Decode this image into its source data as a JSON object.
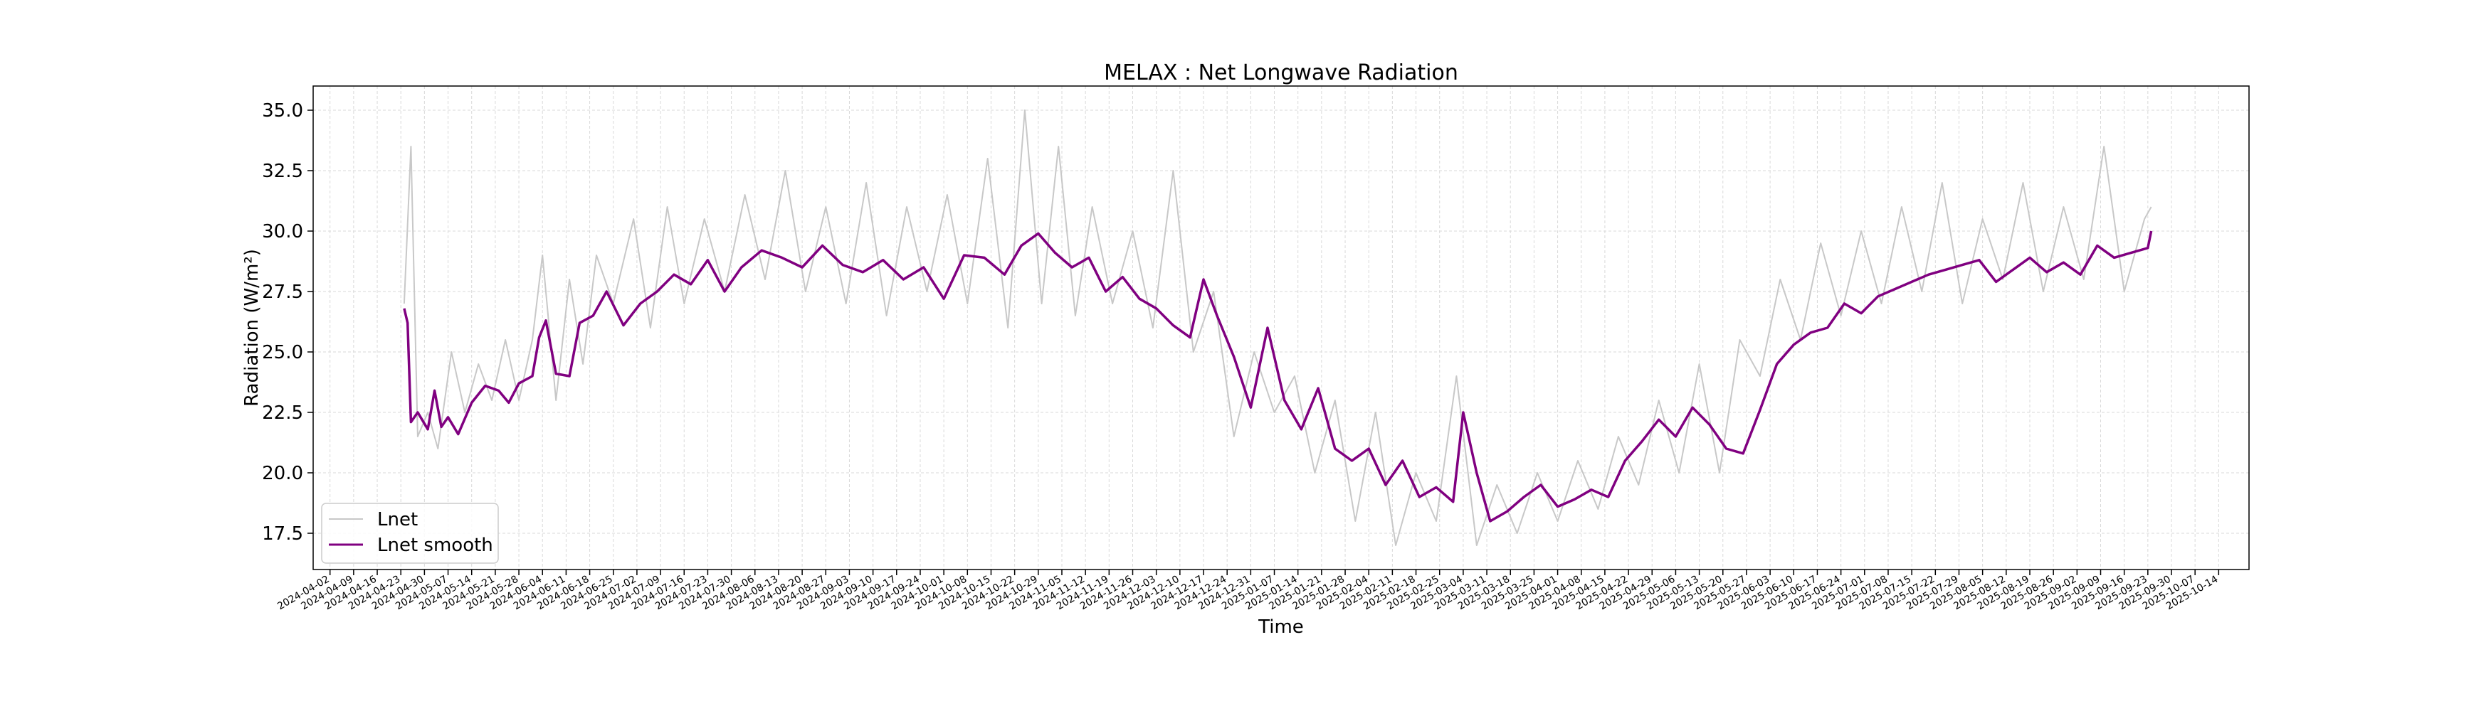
{
  "chart_data": {
    "type": "line",
    "title": "MELAX : Net Longwave Radiation",
    "xlabel": "Time",
    "ylabel": "Radiation (W/m²)",
    "ylim": [
      16.0,
      36.0
    ],
    "yticks": [
      17.5,
      20.0,
      22.5,
      25.0,
      27.5,
      30.0,
      32.5,
      35.0
    ],
    "ytick_labels": [
      "17.5",
      "20.0",
      "22.5",
      "25.0",
      "27.5",
      "30.0",
      "32.5",
      "35.0"
    ],
    "xlim_dates": [
      "2024-03-28",
      "2025-10-23"
    ],
    "xtick_labels": [
      "2024-04-02",
      "2024-04-09",
      "2024-04-16",
      "2024-04-23",
      "2024-04-30",
      "2024-05-07",
      "2024-05-14",
      "2024-05-21",
      "2024-05-28",
      "2024-06-04",
      "2024-06-11",
      "2024-06-18",
      "2024-06-25",
      "2024-07-02",
      "2024-07-09",
      "2024-07-16",
      "2024-07-23",
      "2024-07-30",
      "2024-08-06",
      "2024-08-13",
      "2024-08-20",
      "2024-08-27",
      "2024-09-03",
      "2024-09-10",
      "2024-09-17",
      "2024-09-24",
      "2024-10-01",
      "2024-10-08",
      "2024-10-15",
      "2024-10-22",
      "2024-10-29",
      "2024-11-05",
      "2024-11-12",
      "2024-11-19",
      "2024-11-26",
      "2024-12-03",
      "2024-12-10",
      "2024-12-17",
      "2024-12-24",
      "2024-12-31",
      "2025-01-07",
      "2025-01-14",
      "2025-01-21",
      "2025-01-28",
      "2025-02-04",
      "2025-02-11",
      "2025-02-18",
      "2025-02-25",
      "2025-03-04",
      "2025-03-11",
      "2025-03-18",
      "2025-03-25",
      "2025-04-01",
      "2025-04-08",
      "2025-04-15",
      "2025-04-22",
      "2025-04-29",
      "2025-05-06",
      "2025-05-13",
      "2025-05-20",
      "2025-05-27",
      "2025-06-03",
      "2025-06-10",
      "2025-06-17",
      "2025-06-24",
      "2025-07-01",
      "2025-07-08",
      "2025-07-15",
      "2025-07-22",
      "2025-07-29",
      "2025-08-05",
      "2025-08-12",
      "2025-08-19",
      "2025-08-26",
      "2025-09-02",
      "2025-09-09",
      "2025-09-16",
      "2025-09-23",
      "2025-09-30",
      "2025-10-07",
      "2025-10-14"
    ],
    "grid": true,
    "legend_position": "lower-left",
    "series": [
      {
        "name": "Lnet",
        "color": "#c8c8c8",
        "x": [
          "2024-04-24",
          "2024-04-26",
          "2024-04-28",
          "2024-05-01",
          "2024-05-04",
          "2024-05-08",
          "2024-05-12",
          "2024-05-16",
          "2024-05-20",
          "2024-05-24",
          "2024-05-28",
          "2024-06-01",
          "2024-06-04",
          "2024-06-08",
          "2024-06-12",
          "2024-06-16",
          "2024-06-20",
          "2024-06-25",
          "2024-07-01",
          "2024-07-06",
          "2024-07-11",
          "2024-07-16",
          "2024-07-22",
          "2024-07-28",
          "2024-08-03",
          "2024-08-09",
          "2024-08-15",
          "2024-08-21",
          "2024-08-27",
          "2024-09-02",
          "2024-09-08",
          "2024-09-14",
          "2024-09-20",
          "2024-09-26",
          "2024-10-02",
          "2024-10-08",
          "2024-10-14",
          "2024-10-20",
          "2024-10-25",
          "2024-10-30",
          "2024-11-04",
          "2024-11-09",
          "2024-11-14",
          "2024-11-20",
          "2024-11-26",
          "2024-12-02",
          "2024-12-08",
          "2024-12-14",
          "2024-12-20",
          "2024-12-26",
          "2025-01-01",
          "2025-01-07",
          "2025-01-13",
          "2025-01-19",
          "2025-01-25",
          "2025-01-31",
          "2025-02-06",
          "2025-02-12",
          "2025-02-18",
          "2025-02-24",
          "2025-03-02",
          "2025-03-08",
          "2025-03-14",
          "2025-03-20",
          "2025-03-26",
          "2025-04-01",
          "2025-04-07",
          "2025-04-13",
          "2025-04-19",
          "2025-04-25",
          "2025-05-01",
          "2025-05-07",
          "2025-05-13",
          "2025-05-19",
          "2025-05-25",
          "2025-05-31",
          "2025-06-06",
          "2025-06-12",
          "2025-06-18",
          "2025-06-24",
          "2025-06-30",
          "2025-07-06",
          "2025-07-12",
          "2025-07-18",
          "2025-07-24",
          "2025-07-30",
          "2025-08-05",
          "2025-08-11",
          "2025-08-17",
          "2025-08-23",
          "2025-08-29",
          "2025-09-04",
          "2025-09-10",
          "2025-09-16",
          "2025-09-22",
          "2025-09-24"
        ],
        "values": [
          27.0,
          33.5,
          21.5,
          22.5,
          21.0,
          25.0,
          22.5,
          24.5,
          23.0,
          25.5,
          23.0,
          25.5,
          29.0,
          23.0,
          28.0,
          24.5,
          29.0,
          27.0,
          30.5,
          26.0,
          31.0,
          27.0,
          30.5,
          27.5,
          31.5,
          28.0,
          32.5,
          27.5,
          31.0,
          27.0,
          32.0,
          26.5,
          31.0,
          27.5,
          31.5,
          27.0,
          33.0,
          26.0,
          35.0,
          27.0,
          33.5,
          26.5,
          31.0,
          27.0,
          30.0,
          26.0,
          32.5,
          25.0,
          27.5,
          21.5,
          25.0,
          22.5,
          24.0,
          20.0,
          23.0,
          18.0,
          22.5,
          17.0,
          20.0,
          18.0,
          24.0,
          17.0,
          19.5,
          17.5,
          20.0,
          18.0,
          20.5,
          18.5,
          21.5,
          19.5,
          23.0,
          20.0,
          24.5,
          20.0,
          25.5,
          24.0,
          28.0,
          25.5,
          29.5,
          26.5,
          30.0,
          27.0,
          31.0,
          27.5,
          32.0,
          27.0,
          30.5,
          28.0,
          32.0,
          27.5,
          31.0,
          28.0,
          33.5,
          27.5,
          30.5,
          31.0
        ]
      },
      {
        "name": "Lnet smooth",
        "color": "#800080",
        "x": [
          "2024-04-24",
          "2024-04-25",
          "2024-04-26",
          "2024-04-28",
          "2024-05-01",
          "2024-05-03",
          "2024-05-05",
          "2024-05-07",
          "2024-05-10",
          "2024-05-14",
          "2024-05-18",
          "2024-05-22",
          "2024-05-25",
          "2024-05-28",
          "2024-06-01",
          "2024-06-03",
          "2024-06-05",
          "2024-06-08",
          "2024-06-12",
          "2024-06-15",
          "2024-06-19",
          "2024-06-23",
          "2024-06-28",
          "2024-07-03",
          "2024-07-08",
          "2024-07-13",
          "2024-07-18",
          "2024-07-23",
          "2024-07-28",
          "2024-08-02",
          "2024-08-08",
          "2024-08-14",
          "2024-08-20",
          "2024-08-26",
          "2024-09-01",
          "2024-09-07",
          "2024-09-13",
          "2024-09-19",
          "2024-09-25",
          "2024-10-01",
          "2024-10-07",
          "2024-10-13",
          "2024-10-19",
          "2024-10-24",
          "2024-10-29",
          "2024-11-03",
          "2024-11-08",
          "2024-11-13",
          "2024-11-18",
          "2024-11-23",
          "2024-11-28",
          "2024-12-03",
          "2024-12-08",
          "2024-12-13",
          "2024-12-17",
          "2024-12-21",
          "2024-12-26",
          "2024-12-31",
          "2025-01-05",
          "2025-01-10",
          "2025-01-15",
          "2025-01-20",
          "2025-01-25",
          "2025-01-30",
          "2025-02-04",
          "2025-02-09",
          "2025-02-14",
          "2025-02-19",
          "2025-02-24",
          "2025-03-01",
          "2025-03-04",
          "2025-03-08",
          "2025-03-12",
          "2025-03-17",
          "2025-03-22",
          "2025-03-27",
          "2025-04-01",
          "2025-04-06",
          "2025-04-11",
          "2025-04-16",
          "2025-04-21",
          "2025-04-26",
          "2025-05-01",
          "2025-05-06",
          "2025-05-11",
          "2025-05-16",
          "2025-05-21",
          "2025-05-26",
          "2025-05-31",
          "2025-06-05",
          "2025-06-10",
          "2025-06-15",
          "2025-06-20",
          "2025-06-25",
          "2025-06-30",
          "2025-07-05",
          "2025-07-10",
          "2025-07-15",
          "2025-07-20",
          "2025-07-25",
          "2025-07-30",
          "2025-08-04",
          "2025-08-09",
          "2025-08-14",
          "2025-08-19",
          "2025-08-24",
          "2025-08-29",
          "2025-09-03",
          "2025-09-08",
          "2025-09-13",
          "2025-09-18",
          "2025-09-23",
          "2025-09-24"
        ],
        "values": [
          26.8,
          26.2,
          22.1,
          22.5,
          21.8,
          23.4,
          21.9,
          22.3,
          21.6,
          22.9,
          23.6,
          23.4,
          22.9,
          23.7,
          24.0,
          25.6,
          26.3,
          24.1,
          24.0,
          26.2,
          26.5,
          27.5,
          26.1,
          27.0,
          27.5,
          28.2,
          27.8,
          28.8,
          27.5,
          28.5,
          29.2,
          28.9,
          28.5,
          29.4,
          28.6,
          28.3,
          28.8,
          28.0,
          28.5,
          27.2,
          29.0,
          28.9,
          28.2,
          29.4,
          29.9,
          29.1,
          28.5,
          28.9,
          27.5,
          28.1,
          27.2,
          26.8,
          26.1,
          25.6,
          28.0,
          26.5,
          24.8,
          22.7,
          26.0,
          23.0,
          21.8,
          23.5,
          21.0,
          20.5,
          21.0,
          19.5,
          20.5,
          19.0,
          19.4,
          18.8,
          22.5,
          20.0,
          18.0,
          18.4,
          19.0,
          19.5,
          18.6,
          18.9,
          19.3,
          19.0,
          20.5,
          21.3,
          22.2,
          21.5,
          22.7,
          22.0,
          21.0,
          20.8,
          22.6,
          24.5,
          25.3,
          25.8,
          26.0,
          27.0,
          26.6,
          27.3,
          27.6,
          27.9,
          28.2,
          28.4,
          28.6,
          28.8,
          27.9,
          28.4,
          28.9,
          28.3,
          28.7,
          28.2,
          29.4,
          28.9,
          29.1,
          29.3,
          30.0
        ]
      }
    ]
  }
}
